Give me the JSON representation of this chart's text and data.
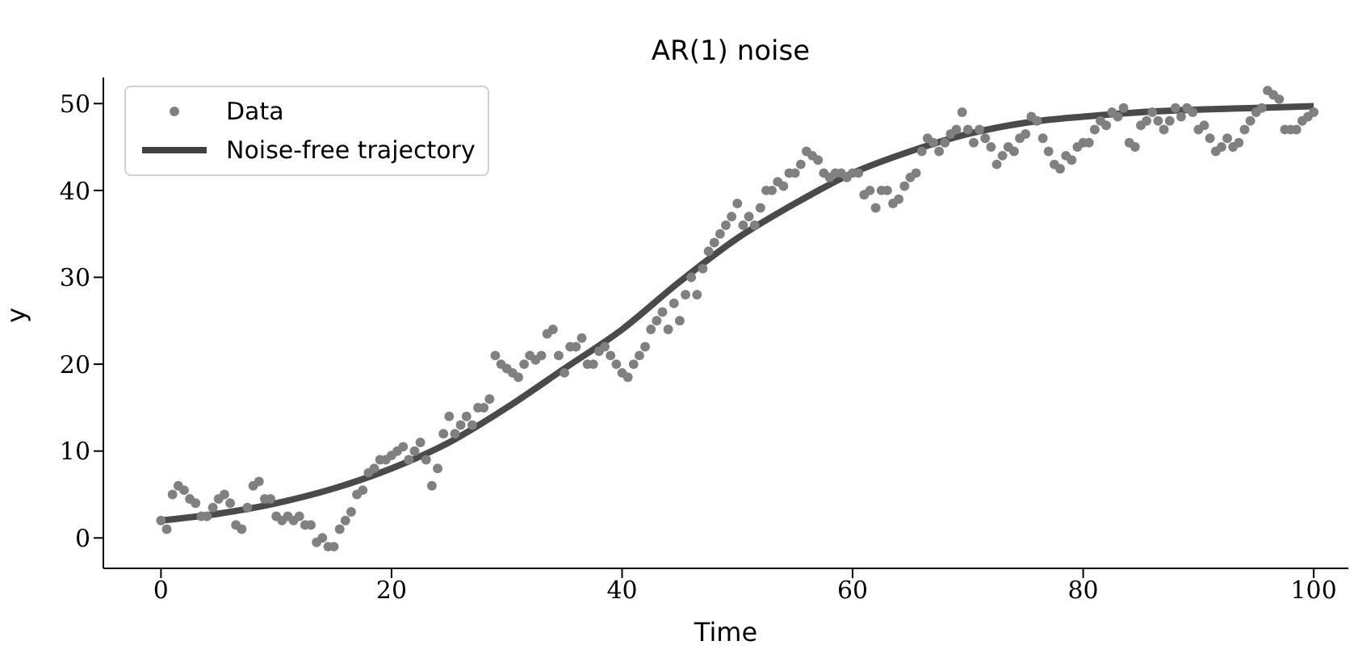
{
  "chart_data": {
    "type": "scatter",
    "title": "AR(1) noise",
    "xlabel": "Time",
    "ylabel": "y",
    "xlim": [
      -5,
      103
    ],
    "xticks": [
      0,
      20,
      40,
      60,
      80,
      100
    ],
    "ylim": [
      -3.5,
      53
    ],
    "yticks": [
      0,
      10,
      20,
      30,
      40,
      50
    ],
    "legend": "top left",
    "series": [
      {
        "name": "Data",
        "type": "scatter",
        "marker": "circle",
        "color": "#808080",
        "x": [
          0,
          0.5,
          1,
          1.5,
          2,
          2.5,
          3,
          3.5,
          4,
          4.5,
          5,
          5.5,
          6,
          6.5,
          7,
          7.5,
          8,
          8.5,
          9,
          9.5,
          10,
          10.5,
          11,
          11.5,
          12,
          12.5,
          13,
          13.5,
          14,
          14.5,
          15,
          15.5,
          16,
          16.5,
          17,
          17.5,
          18,
          18.5,
          19,
          19.5,
          20,
          20.5,
          21,
          21.5,
          22,
          22.5,
          23,
          23.5,
          24,
          24.5,
          25,
          25.5,
          26,
          26.5,
          27,
          27.5,
          28,
          28.5,
          29,
          29.5,
          30,
          30.5,
          31,
          31.5,
          32,
          32.5,
          33,
          33.5,
          34,
          34.5,
          35,
          35.5,
          36,
          36.5,
          37,
          37.5,
          38,
          38.5,
          39,
          39.5,
          40,
          40.5,
          41,
          41.5,
          42,
          42.5,
          43,
          43.5,
          44,
          44.5,
          45,
          45.5,
          46,
          46.5,
          47,
          47.5,
          48,
          48.5,
          49,
          49.5,
          50,
          50.5,
          51,
          51.5,
          52,
          52.5,
          53,
          53.5,
          54,
          54.5,
          55,
          55.5,
          56,
          56.5,
          57,
          57.5,
          58,
          58.5,
          59,
          59.5,
          60,
          60.5,
          61,
          61.5,
          62,
          62.5,
          63,
          63.5,
          64,
          64.5,
          65,
          65.5,
          66,
          66.5,
          67,
          67.5,
          68,
          68.5,
          69,
          69.5,
          70,
          70.5,
          71,
          71.5,
          72,
          72.5,
          73,
          73.5,
          74,
          74.5,
          75,
          75.5,
          76,
          76.5,
          77,
          77.5,
          78,
          78.5,
          79,
          79.5,
          80,
          80.5,
          81,
          81.5,
          82,
          82.5,
          83,
          83.5,
          84,
          84.5,
          85,
          85.5,
          86,
          86.5,
          87,
          87.5,
          88,
          88.5,
          89,
          89.5,
          90,
          90.5,
          91,
          91.5,
          92,
          92.5,
          93,
          93.5,
          94,
          94.5,
          95,
          95.5,
          96,
          96.5,
          97,
          97.5,
          98,
          98.5,
          99,
          99.5,
          100
        ],
        "values": [
          2,
          1,
          5,
          6,
          5.5,
          4.5,
          4,
          2.5,
          2.5,
          3.5,
          4.5,
          5,
          4,
          1.5,
          1,
          3.5,
          6,
          6.5,
          4.5,
          4.5,
          2.5,
          2,
          2.5,
          2,
          2.5,
          1.5,
          1.5,
          -0.5,
          0,
          -1,
          -1,
          1,
          2,
          3,
          5,
          5.5,
          7.5,
          8,
          9,
          9,
          9.5,
          10,
          10.5,
          9,
          10,
          11,
          9,
          6,
          8,
          12,
          14,
          12,
          13,
          14,
          13,
          15,
          15,
          16,
          21,
          20,
          19.5,
          19,
          18.5,
          20,
          21,
          20.5,
          21,
          23.5,
          24,
          21,
          19,
          22,
          22,
          23,
          20,
          20,
          21.5,
          22,
          21,
          20,
          19,
          18.5,
          20,
          21,
          22,
          24,
          25,
          26,
          24,
          27,
          25,
          28,
          30,
          28,
          31,
          33,
          34,
          35,
          36,
          37,
          38.5,
          36,
          37,
          36,
          38,
          40,
          40,
          41,
          40.5,
          42,
          42,
          43,
          44.5,
          44,
          43.5,
          42,
          41.5,
          42,
          42,
          41.5,
          42,
          42,
          39.5,
          40,
          38,
          40,
          40,
          38.5,
          39,
          40.5,
          41.5,
          42,
          44.5,
          46,
          45.5,
          44.5,
          45.5,
          46.5,
          47,
          49,
          47,
          45.5,
          47,
          46,
          45,
          43,
          44,
          45,
          44.5,
          46,
          46.5,
          48.5,
          48,
          46,
          44.5,
          43,
          42.5,
          44,
          43.5,
          45,
          45.5,
          45.5,
          47,
          48,
          47.5,
          49,
          48.5,
          49.5,
          45.5,
          45,
          47.5,
          48,
          49,
          48,
          47,
          48,
          49.5,
          48.5,
          49.5,
          49,
          47,
          47.5,
          46,
          44.5,
          45,
          46,
          45,
          45.5,
          47,
          48,
          49,
          49.5,
          51.5,
          51,
          50.5,
          47,
          47,
          47,
          48,
          48.5,
          49
        ]
      },
      {
        "name": "Noise-free trajectory",
        "type": "line",
        "marker": "none",
        "color": "#404040",
        "x": [
          0,
          5,
          10,
          15,
          20,
          25,
          30,
          35,
          40,
          45,
          50,
          55,
          60,
          65,
          70,
          75,
          80,
          85,
          90,
          95,
          100
        ],
        "values": [
          2,
          2.8,
          4,
          5.7,
          8,
          11,
          15,
          19.5,
          24,
          29.5,
          34.5,
          38.5,
          42,
          44.5,
          46.5,
          47.8,
          48.5,
          49,
          49.3,
          49.5,
          49.7
        ]
      }
    ]
  }
}
